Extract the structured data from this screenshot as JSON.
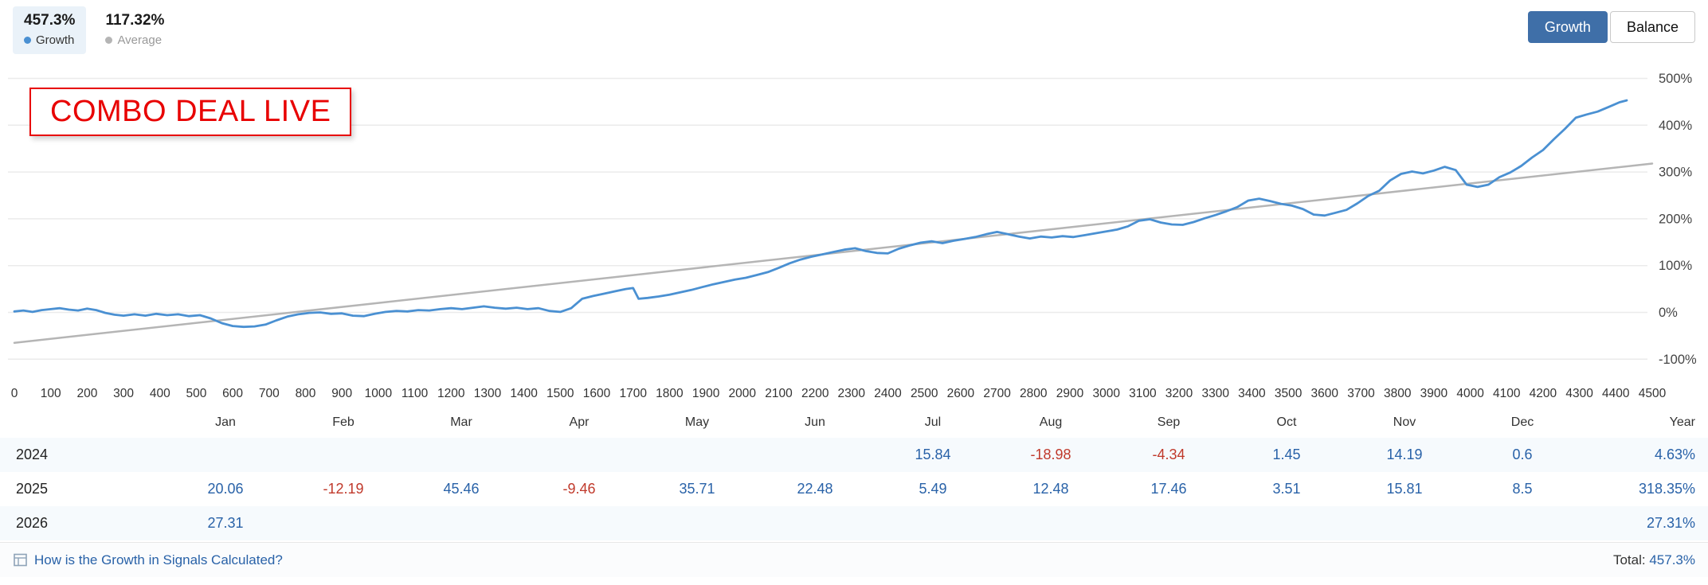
{
  "header": {
    "growth_stat": {
      "value": "457.3%",
      "label": "Growth"
    },
    "average_stat": {
      "value": "117.32%",
      "label": "Average"
    },
    "toggle": {
      "growth": "Growth",
      "balance": "Balance"
    },
    "colors": {
      "growth": "#4a90d2",
      "average": "#b5b5b5",
      "positive": "#2962a8",
      "negative": "#c0392b"
    }
  },
  "overlay": {
    "banner": "COMBO DEAL LIVE",
    "color": "#e80202"
  },
  "chart_data": {
    "type": "line",
    "title": "",
    "xlabel": "",
    "ylabel": "",
    "xlim": [
      0,
      4500
    ],
    "ylim": [
      -100,
      500
    ],
    "grid": "horizontal",
    "legend_position": "top-left",
    "y_tick_suffix": "%",
    "y_ticks": [
      500,
      400,
      300,
      200,
      100,
      0,
      -100
    ],
    "x_ticks": [
      0,
      100,
      200,
      300,
      400,
      500,
      600,
      700,
      800,
      900,
      1000,
      1100,
      1200,
      1300,
      1400,
      1500,
      1600,
      1700,
      1800,
      1900,
      2000,
      2100,
      2200,
      2300,
      2400,
      2500,
      2600,
      2700,
      2800,
      2900,
      3000,
      3100,
      3200,
      3300,
      3400,
      3500,
      3600,
      3700,
      3800,
      3900,
      4000,
      4100,
      4200,
      4300,
      4400,
      4500
    ],
    "series": [
      {
        "name": "Growth",
        "color": "#4a90d2",
        "points": [
          [
            0,
            2
          ],
          [
            25,
            4
          ],
          [
            50,
            1
          ],
          [
            75,
            5
          ],
          [
            100,
            7
          ],
          [
            125,
            9
          ],
          [
            150,
            6
          ],
          [
            175,
            4
          ],
          [
            200,
            8
          ],
          [
            225,
            5
          ],
          [
            250,
            -1
          ],
          [
            275,
            -5
          ],
          [
            300,
            -7
          ],
          [
            330,
            -4
          ],
          [
            360,
            -7
          ],
          [
            390,
            -3
          ],
          [
            420,
            -6
          ],
          [
            450,
            -4
          ],
          [
            480,
            -8
          ],
          [
            510,
            -6
          ],
          [
            540,
            -13
          ],
          [
            570,
            -23
          ],
          [
            600,
            -29
          ],
          [
            630,
            -31
          ],
          [
            660,
            -30
          ],
          [
            690,
            -26
          ],
          [
            720,
            -17
          ],
          [
            750,
            -9
          ],
          [
            780,
            -4
          ],
          [
            810,
            -1
          ],
          [
            840,
            0
          ],
          [
            870,
            -3
          ],
          [
            900,
            -2
          ],
          [
            930,
            -7
          ],
          [
            960,
            -8
          ],
          [
            990,
            -3
          ],
          [
            1020,
            1
          ],
          [
            1050,
            3
          ],
          [
            1080,
            2
          ],
          [
            1110,
            5
          ],
          [
            1140,
            4
          ],
          [
            1170,
            7
          ],
          [
            1200,
            9
          ],
          [
            1230,
            7
          ],
          [
            1260,
            10
          ],
          [
            1290,
            13
          ],
          [
            1320,
            10
          ],
          [
            1350,
            8
          ],
          [
            1380,
            10
          ],
          [
            1410,
            7
          ],
          [
            1440,
            9
          ],
          [
            1470,
            3
          ],
          [
            1500,
            1
          ],
          [
            1530,
            9
          ],
          [
            1560,
            29
          ],
          [
            1590,
            35
          ],
          [
            1620,
            40
          ],
          [
            1650,
            45
          ],
          [
            1680,
            50
          ],
          [
            1700,
            52
          ],
          [
            1715,
            29
          ],
          [
            1740,
            31
          ],
          [
            1770,
            34
          ],
          [
            1800,
            38
          ],
          [
            1830,
            43
          ],
          [
            1860,
            48
          ],
          [
            1890,
            54
          ],
          [
            1920,
            60
          ],
          [
            1950,
            65
          ],
          [
            1980,
            70
          ],
          [
            2010,
            74
          ],
          [
            2040,
            80
          ],
          [
            2070,
            86
          ],
          [
            2100,
            95
          ],
          [
            2130,
            105
          ],
          [
            2160,
            113
          ],
          [
            2190,
            119
          ],
          [
            2220,
            124
          ],
          [
            2250,
            129
          ],
          [
            2280,
            134
          ],
          [
            2310,
            137
          ],
          [
            2340,
            131
          ],
          [
            2370,
            127
          ],
          [
            2400,
            126
          ],
          [
            2430,
            136
          ],
          [
            2460,
            143
          ],
          [
            2490,
            149
          ],
          [
            2520,
            152
          ],
          [
            2550,
            148
          ],
          [
            2580,
            153
          ],
          [
            2610,
            157
          ],
          [
            2640,
            161
          ],
          [
            2670,
            167
          ],
          [
            2700,
            172
          ],
          [
            2730,
            167
          ],
          [
            2760,
            162
          ],
          [
            2790,
            158
          ],
          [
            2820,
            162
          ],
          [
            2850,
            160
          ],
          [
            2880,
            163
          ],
          [
            2910,
            161
          ],
          [
            2940,
            165
          ],
          [
            2970,
            169
          ],
          [
            3000,
            173
          ],
          [
            3030,
            177
          ],
          [
            3060,
            184
          ],
          [
            3090,
            196
          ],
          [
            3120,
            199
          ],
          [
            3150,
            192
          ],
          [
            3180,
            188
          ],
          [
            3210,
            187
          ],
          [
            3240,
            193
          ],
          [
            3270,
            201
          ],
          [
            3300,
            208
          ],
          [
            3330,
            216
          ],
          [
            3360,
            225
          ],
          [
            3390,
            239
          ],
          [
            3420,
            243
          ],
          [
            3450,
            238
          ],
          [
            3480,
            232
          ],
          [
            3510,
            228
          ],
          [
            3540,
            221
          ],
          [
            3570,
            209
          ],
          [
            3600,
            207
          ],
          [
            3630,
            213
          ],
          [
            3660,
            219
          ],
          [
            3690,
            233
          ],
          [
            3720,
            249
          ],
          [
            3750,
            260
          ],
          [
            3780,
            282
          ],
          [
            3810,
            296
          ],
          [
            3840,
            301
          ],
          [
            3870,
            297
          ],
          [
            3900,
            303
          ],
          [
            3930,
            311
          ],
          [
            3960,
            304
          ],
          [
            3990,
            273
          ],
          [
            4020,
            268
          ],
          [
            4050,
            273
          ],
          [
            4080,
            289
          ],
          [
            4110,
            299
          ],
          [
            4140,
            313
          ],
          [
            4170,
            331
          ],
          [
            4200,
            347
          ],
          [
            4230,
            370
          ],
          [
            4260,
            392
          ],
          [
            4290,
            416
          ],
          [
            4320,
            423
          ],
          [
            4350,
            429
          ],
          [
            4380,
            439
          ],
          [
            4410,
            449
          ],
          [
            4430,
            453
          ]
        ]
      },
      {
        "name": "Average",
        "color": "#b5b5b5",
        "points": [
          [
            0,
            -65
          ],
          [
            4500,
            318
          ]
        ]
      }
    ]
  },
  "months": [
    "Jan",
    "Feb",
    "Mar",
    "Apr",
    "May",
    "Jun",
    "Jul",
    "Aug",
    "Sep",
    "Oct",
    "Nov",
    "Dec"
  ],
  "table": {
    "year_header": "Year",
    "rows": [
      {
        "year": "2024",
        "values": [
          "",
          "",
          "",
          "",
          "",
          "",
          "15.84",
          "-18.98",
          "-4.34",
          "1.45",
          "14.19",
          "0.6"
        ],
        "total": "4.63%"
      },
      {
        "year": "2025",
        "values": [
          "20.06",
          "-12.19",
          "45.46",
          "-9.46",
          "35.71",
          "22.48",
          "5.49",
          "12.48",
          "17.46",
          "3.51",
          "15.81",
          "8.5"
        ],
        "total": "318.35%"
      },
      {
        "year": "2026",
        "values": [
          "27.31",
          "",
          "",
          "",
          "",
          "",
          "",
          "",
          "",
          "",
          "",
          ""
        ],
        "total": "27.31%"
      }
    ]
  },
  "footer": {
    "link": "How is the Growth in Signals Calculated?",
    "total_label": "Total:",
    "total_value": "457.3%"
  }
}
